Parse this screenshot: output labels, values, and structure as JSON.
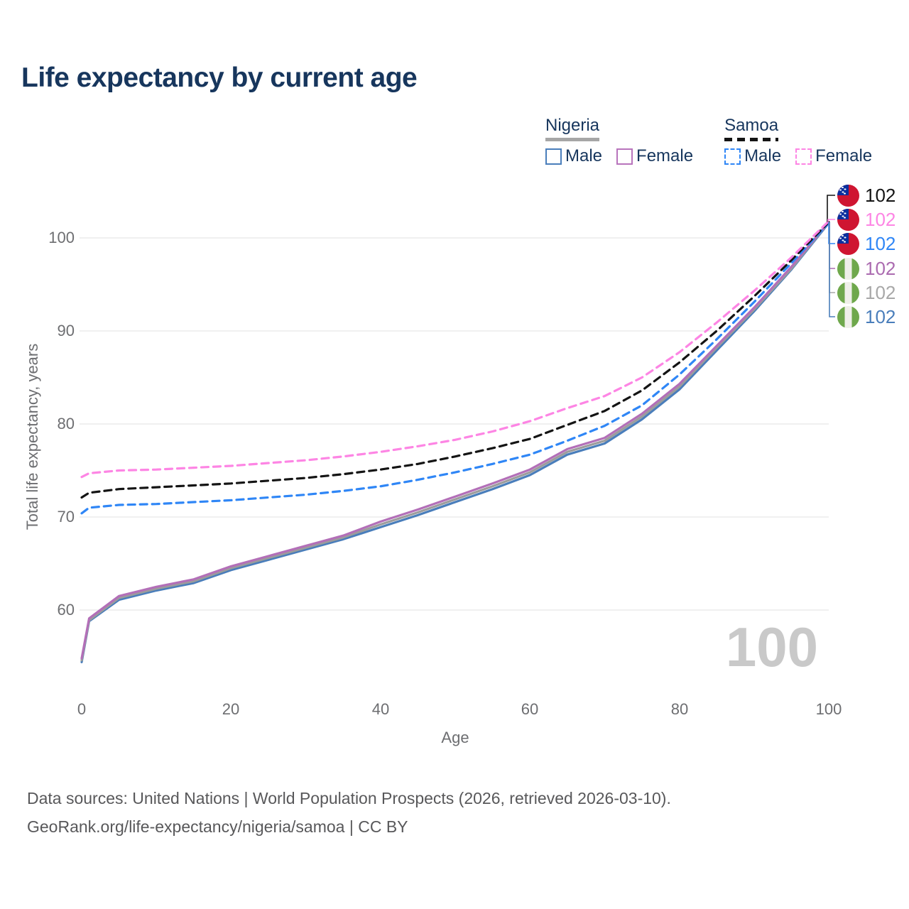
{
  "title": "Life expectancy by current age",
  "legend": {
    "groups": [
      {
        "name": "Nigeria",
        "line": "solid",
        "line_color": "#a6a6a6",
        "items": [
          {
            "label": "Male",
            "color": "#4a7ebb"
          },
          {
            "label": "Female",
            "color": "#b874bc"
          }
        ]
      },
      {
        "name": "Samoa",
        "line": "dashed",
        "line_color": "#141414",
        "items": [
          {
            "label": "Male",
            "color": "#2f86f6"
          },
          {
            "label": "Female",
            "color": "#fd85e4"
          }
        ]
      }
    ]
  },
  "chart_data": {
    "type": "line",
    "title": "Life expectancy by current age",
    "xlabel": "Age",
    "ylabel": "Total life expectancy, years",
    "xlim": [
      0,
      100
    ],
    "ylim": [
      54,
      102
    ],
    "grid": true,
    "legend_position": "top-right",
    "x_ticks": [
      0,
      20,
      40,
      60,
      80,
      100
    ],
    "y_ticks": [
      60,
      70,
      80,
      90,
      100
    ],
    "x": [
      0,
      1,
      5,
      10,
      15,
      20,
      25,
      30,
      35,
      40,
      45,
      50,
      55,
      60,
      65,
      70,
      75,
      80,
      85,
      90,
      95,
      100
    ],
    "series": [
      {
        "id": "nigeria-male",
        "name": "Nigeria Male",
        "country": "Nigeria",
        "sex": "male",
        "color": "#4a7ebb",
        "dash": false,
        "values": [
          54.4,
          58.8,
          61.1,
          62.1,
          62.9,
          64.3,
          65.4,
          66.5,
          67.6,
          68.9,
          70.2,
          71.6,
          73.0,
          74.5,
          76.7,
          77.9,
          80.5,
          83.7,
          87.9,
          92.1,
          96.6,
          101.6
        ]
      },
      {
        "id": "nigeria-total",
        "name": "Nigeria Both sexes",
        "country": "Nigeria",
        "sex": "all",
        "color": "#9c9c9c",
        "dash": false,
        "values": [
          54.6,
          58.9,
          61.3,
          62.3,
          63.1,
          64.5,
          65.6,
          66.7,
          67.8,
          69.2,
          70.5,
          71.9,
          73.3,
          74.8,
          77.0,
          78.2,
          80.8,
          84.0,
          88.2,
          92.3,
          96.7,
          101.7
        ]
      },
      {
        "id": "nigeria-female",
        "name": "Nigeria Female",
        "country": "Nigeria",
        "sex": "female",
        "color": "#b36fb8",
        "dash": false,
        "values": [
          54.8,
          59.1,
          61.5,
          62.5,
          63.3,
          64.7,
          65.8,
          66.9,
          68.0,
          69.5,
          70.8,
          72.2,
          73.6,
          75.1,
          77.3,
          78.5,
          81.1,
          84.3,
          88.4,
          92.5,
          96.9,
          101.7
        ]
      },
      {
        "id": "samoa-male",
        "name": "Samoa Male",
        "country": "Samoa",
        "sex": "male",
        "color": "#2f86f6",
        "dash": true,
        "values": [
          70.4,
          71.0,
          71.3,
          71.4,
          71.6,
          71.8,
          72.1,
          72.4,
          72.8,
          73.3,
          74.0,
          74.8,
          75.7,
          76.7,
          78.2,
          79.8,
          82.0,
          85.3,
          89.1,
          93.1,
          97.3,
          101.6
        ]
      },
      {
        "id": "samoa-total",
        "name": "Samoa Both sexes",
        "country": "Samoa",
        "sex": "all",
        "color": "#141414",
        "dash": true,
        "values": [
          72.1,
          72.6,
          73.0,
          73.2,
          73.4,
          73.6,
          73.9,
          74.2,
          74.6,
          75.1,
          75.7,
          76.5,
          77.4,
          78.4,
          79.9,
          81.4,
          83.6,
          86.6,
          90.0,
          93.7,
          97.6,
          101.7
        ]
      },
      {
        "id": "samoa-female",
        "name": "Samoa Female",
        "country": "Samoa",
        "sex": "female",
        "color": "#fd85e4",
        "dash": true,
        "values": [
          74.3,
          74.7,
          75.0,
          75.1,
          75.3,
          75.5,
          75.8,
          76.1,
          76.5,
          77.0,
          77.6,
          78.3,
          79.2,
          80.3,
          81.7,
          83.0,
          85.0,
          87.7,
          90.9,
          94.3,
          97.9,
          101.8
        ]
      }
    ]
  },
  "end_labels": [
    {
      "country": "Samoa",
      "series": "Total",
      "value": "102",
      "color": "#141414"
    },
    {
      "country": "Samoa",
      "series": "Female",
      "value": "102",
      "color": "#fd85e4"
    },
    {
      "country": "Samoa",
      "series": "Male",
      "value": "102",
      "color": "#2f86f6"
    },
    {
      "country": "Nigeria",
      "series": "Female",
      "value": "102",
      "color": "#ab6bb0"
    },
    {
      "country": "Nigeria",
      "series": "Total",
      "value": "102",
      "color": "#a8a8a8"
    },
    {
      "country": "Nigeria",
      "series": "Male",
      "value": "102",
      "color": "#4a7ebb"
    }
  ],
  "watermark": "100",
  "footer": {
    "line1": "Data sources: United Nations | World Population Prospects (2026, retrieved 2026-03-10).",
    "line2": "GeoRank.org/life-expectancy/nigeria/samoa | CC BY"
  }
}
